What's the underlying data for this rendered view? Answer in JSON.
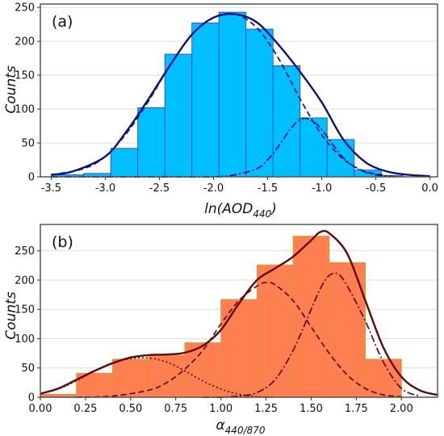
{
  "chart_data": [
    {
      "type": "bar",
      "panel_label": "(a)",
      "xlabel": "ln(AOD",
      "xlabel_sub": "440",
      "xlabel_suffix": ")",
      "ylabel": "Counts",
      "xlim": [
        -3.6,
        0.07
      ],
      "ylim": [
        0,
        255
      ],
      "xticks": [
        -3.5,
        -3.0,
        -2.5,
        -2.0,
        -1.5,
        -1.0,
        -0.5,
        0.0
      ],
      "xtick_labels": [
        "-3.5",
        "-3.0",
        "-2.5",
        "-2.0",
        "-1.5",
        "-1.0",
        "-0.5",
        "0.0"
      ],
      "yticks": [
        0,
        50,
        100,
        150,
        200,
        250
      ],
      "ytick_labels": [
        "0",
        "50",
        "100",
        "150",
        "200",
        "250"
      ],
      "grid": "horizontal",
      "bar_color": "#00bfff",
      "bar_edge": "#1f3fbf",
      "bins": [
        {
          "x0": -3.5,
          "x1": -3.2,
          "value": 3
        },
        {
          "x0": -3.2,
          "x1": -2.95,
          "value": 5
        },
        {
          "x0": -2.95,
          "x1": -2.7,
          "value": 42
        },
        {
          "x0": -2.7,
          "x1": -2.45,
          "value": 102
        },
        {
          "x0": -2.45,
          "x1": -2.2,
          "value": 181
        },
        {
          "x0": -2.2,
          "x1": -1.95,
          "value": 227
        },
        {
          "x0": -1.95,
          "x1": -1.7,
          "value": 243
        },
        {
          "x0": -1.7,
          "x1": -1.45,
          "value": 218
        },
        {
          "x0": -1.45,
          "x1": -1.2,
          "value": 164
        },
        {
          "x0": -1.2,
          "x1": -0.95,
          "value": 87
        },
        {
          "x0": -0.95,
          "x1": -0.7,
          "value": 55
        },
        {
          "x0": -0.7,
          "x1": -0.45,
          "value": 10
        },
        {
          "x0": -0.45,
          "x1": -0.25,
          "value": 2
        }
      ],
      "series": [
        {
          "style": "solid",
          "color": "#0a1080",
          "x": [
            -3.5,
            -3.3,
            -3.0,
            -2.8,
            -2.6,
            -2.4,
            -2.2,
            -2.0,
            -1.8,
            -1.6,
            -1.4,
            -1.2,
            -1.0,
            -0.8,
            -0.6,
            -0.4,
            -0.2,
            0.0
          ],
          "y": [
            3,
            8,
            30,
            68,
            115,
            165,
            210,
            235,
            240,
            228,
            195,
            155,
            110,
            55,
            22,
            8,
            3,
            1
          ]
        },
        {
          "style": "dashed",
          "color": "#0a1080",
          "x": [
            -3.5,
            -3.2,
            -3.0,
            -2.8,
            -2.6,
            -2.4,
            -2.2,
            -2.0,
            -1.8,
            -1.6,
            -1.4,
            -1.2,
            -1.0,
            -0.8,
            -0.6,
            -0.4
          ],
          "y": [
            3,
            12,
            30,
            65,
            112,
            165,
            210,
            235,
            240,
            220,
            175,
            115,
            62,
            26,
            8,
            2
          ]
        },
        {
          "style": "dashdot",
          "color": "#0a1080",
          "x": [
            -3.5,
            -2.5,
            -2.0,
            -1.8,
            -1.6,
            -1.5,
            -1.4,
            -1.3,
            -1.2,
            -1.1,
            -1.0,
            -0.9,
            -0.8,
            -0.7,
            -0.6,
            -0.5,
            -0.4,
            -0.3
          ],
          "y": [
            0,
            0,
            0,
            3,
            12,
            25,
            45,
            68,
            85,
            84,
            70,
            48,
            28,
            15,
            7,
            3,
            1,
            0
          ]
        }
      ]
    },
    {
      "type": "bar",
      "panel_label": "(b)",
      "xlabel": "α",
      "xlabel_sub": "440/870",
      "ylabel": "Counts",
      "xlim": [
        0.0,
        2.2
      ],
      "ylim": [
        0,
        295
      ],
      "xticks": [
        0.0,
        0.25,
        0.5,
        0.75,
        1.0,
        1.25,
        1.5,
        1.75,
        2.0
      ],
      "xtick_labels": [
        "0.00",
        "0.25",
        "0.50",
        "0.75",
        "1.00",
        "1.25",
        "1.50",
        "1.75",
        "2.00"
      ],
      "yticks": [
        0,
        50,
        100,
        150,
        200,
        250
      ],
      "ytick_labels": [
        "0",
        "50",
        "100",
        "150",
        "200",
        "250"
      ],
      "grid": "horizontal",
      "bar_color": "#ff7f50",
      "bar_edge": "#c8a020",
      "bins": [
        {
          "x0": 0.0,
          "x1": 0.2,
          "value": 5
        },
        {
          "x0": 0.2,
          "x1": 0.4,
          "value": 41
        },
        {
          "x0": 0.4,
          "x1": 0.6,
          "value": 65
        },
        {
          "x0": 0.6,
          "x1": 0.8,
          "value": 72
        },
        {
          "x0": 0.8,
          "x1": 1.0,
          "value": 93
        },
        {
          "x0": 1.0,
          "x1": 1.2,
          "value": 167
        },
        {
          "x0": 1.2,
          "x1": 1.4,
          "value": 226
        },
        {
          "x0": 1.4,
          "x1": 1.6,
          "value": 275
        },
        {
          "x0": 1.6,
          "x1": 1.8,
          "value": 230
        },
        {
          "x0": 1.8,
          "x1": 2.0,
          "value": 65
        }
      ],
      "series": [
        {
          "style": "solid",
          "color": "#5c0a0a",
          "x": [
            0.0,
            0.1,
            0.2,
            0.3,
            0.4,
            0.5,
            0.6,
            0.7,
            0.8,
            0.9,
            1.0,
            1.1,
            1.2,
            1.3,
            1.4,
            1.5,
            1.55,
            1.6,
            1.7,
            1.8,
            1.9,
            2.0,
            2.1,
            2.2
          ],
          "y": [
            6,
            15,
            30,
            45,
            58,
            68,
            72,
            73,
            76,
            88,
            115,
            160,
            200,
            220,
            240,
            268,
            282,
            280,
            245,
            165,
            85,
            35,
            12,
            4
          ]
        },
        {
          "style": "dotted",
          "color": "#5c0a0a",
          "x": [
            0.0,
            0.1,
            0.2,
            0.3,
            0.4,
            0.5,
            0.6,
            0.7,
            0.8,
            0.9,
            1.0,
            1.1,
            1.2,
            1.3
          ],
          "y": [
            6,
            14,
            28,
            45,
            59,
            66,
            67,
            60,
            45,
            28,
            14,
            5,
            1,
            0
          ]
        },
        {
          "style": "dashed",
          "color": "#5c0a0a",
          "x": [
            0.2,
            0.4,
            0.6,
            0.7,
            0.8,
            0.9,
            1.0,
            1.1,
            1.2,
            1.25,
            1.3,
            1.4,
            1.5,
            1.6,
            1.7,
            1.8,
            1.9,
            2.0
          ],
          "y": [
            0,
            2,
            12,
            25,
            48,
            80,
            125,
            165,
            190,
            196,
            192,
            165,
            120,
            75,
            38,
            15,
            4,
            1
          ]
        },
        {
          "style": "dashdot",
          "color": "#5c0a0a",
          "x": [
            0.9,
            1.0,
            1.1,
            1.2,
            1.3,
            1.4,
            1.5,
            1.55,
            1.6,
            1.65,
            1.7,
            1.8,
            1.9,
            2.0,
            2.1
          ],
          "y": [
            0,
            0,
            2,
            8,
            30,
            80,
            150,
            185,
            208,
            210,
            190,
            130,
            60,
            15,
            2
          ]
        }
      ]
    }
  ]
}
